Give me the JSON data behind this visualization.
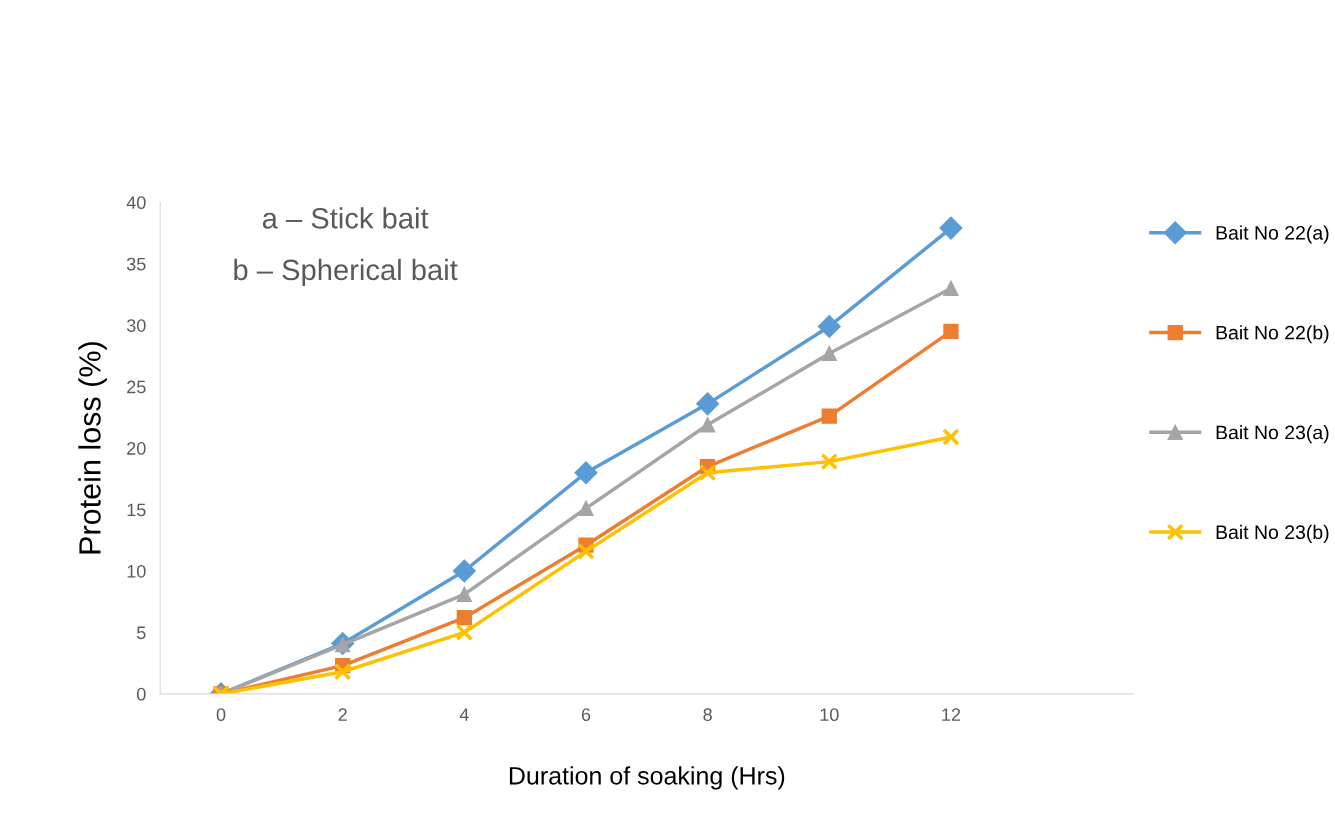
{
  "chart_data": {
    "type": "line",
    "xlabel": "Duration of soaking (Hrs)",
    "ylabel": "Protein loss (%)",
    "x": [
      0,
      2,
      4,
      6,
      8,
      10,
      12
    ],
    "xlim": [
      -1,
      15
    ],
    "xticks": [
      0,
      2,
      4,
      6,
      8,
      10,
      12
    ],
    "ylim": [
      0,
      40
    ],
    "yticks": [
      0,
      5,
      10,
      15,
      20,
      25,
      30,
      35,
      40
    ],
    "grid": false,
    "legend": "right",
    "annotations": [
      "a – Stick bait",
      "b – Spherical bait"
    ],
    "series": [
      {
        "name": "Bait No 22(a)",
        "color": "#5b9bd5",
        "marker": "diamond",
        "values": [
          0,
          4.1,
          10,
          18,
          23.6,
          29.9,
          37.9
        ]
      },
      {
        "name": "Bait No 22(b)",
        "color": "#ed7d31",
        "marker": "square",
        "values": [
          0,
          2.3,
          6.2,
          12.1,
          18.5,
          22.6,
          29.5
        ]
      },
      {
        "name": "Bait No 23(a)",
        "color": "#a5a5a5",
        "marker": "triangle",
        "values": [
          0,
          4.0,
          8.1,
          15.1,
          21.9,
          27.7,
          33.0
        ]
      },
      {
        "name": "Bait No 23(b)",
        "color": "#ffc000",
        "marker": "cross",
        "values": [
          0,
          1.8,
          5.0,
          11.6,
          18.0,
          18.9,
          20.9
        ]
      }
    ]
  }
}
